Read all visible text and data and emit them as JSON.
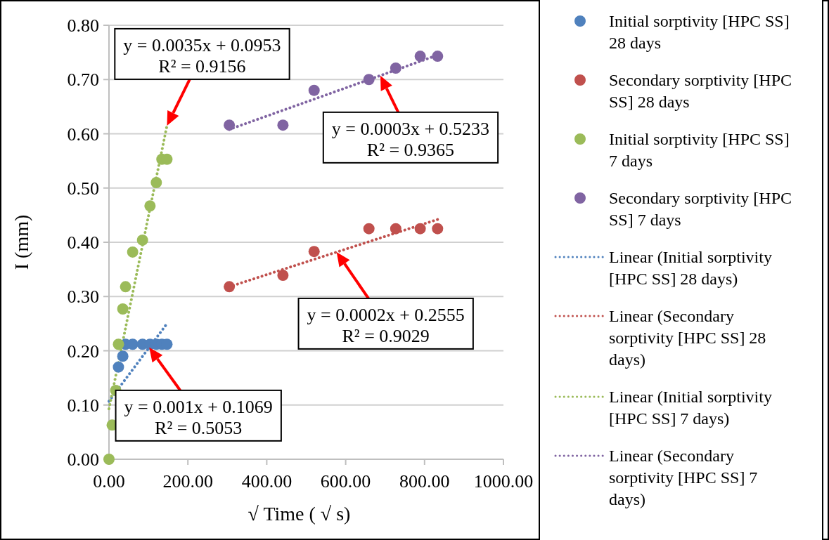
{
  "chart_data": {
    "type": "scatter",
    "xlabel": "√ Time ( √ s)",
    "ylabel": "I (mm)",
    "xlim": [
      0,
      1000
    ],
    "ylim": [
      0,
      0.8
    ],
    "xticks": [
      {
        "value": 0,
        "label": "0.00"
      },
      {
        "value": 200,
        "label": "200.00"
      },
      {
        "value": 400,
        "label": "400.00"
      },
      {
        "value": 600,
        "label": "600.00"
      },
      {
        "value": 800,
        "label": "800.00"
      },
      {
        "value": 1000,
        "label": "1000.00"
      }
    ],
    "yticks": [
      {
        "value": 0,
        "label": "0.00"
      },
      {
        "value": 0.1,
        "label": "0.10"
      },
      {
        "value": 0.2,
        "label": "0.20"
      },
      {
        "value": 0.3,
        "label": "0.30"
      },
      {
        "value": 0.4,
        "label": "0.40"
      },
      {
        "value": 0.5,
        "label": "0.50"
      },
      {
        "value": 0.6,
        "label": "0.60"
      },
      {
        "value": 0.7,
        "label": "0.70"
      },
      {
        "value": 0.8,
        "label": "0.80"
      }
    ],
    "grid": "y",
    "legend": "right",
    "marker": "circle",
    "series": [
      {
        "name": "Initial sorptivity [HPC SS] 28 days",
        "color": "#4f81bd",
        "x": [
          24,
          35,
          42,
          60,
          85,
          104,
          120,
          134,
          147
        ],
        "values": [
          0.17,
          0.19,
          0.212,
          0.212,
          0.212,
          0.212,
          0.212,
          0.212,
          0.212
        ]
      },
      {
        "name": "Secondary sorptivity [HPC SS] 28 days",
        "color": "#c0504d",
        "x": [
          305,
          441,
          520,
          659,
          727,
          789,
          833
        ],
        "values": [
          0.318,
          0.339,
          0.383,
          0.425,
          0.425,
          0.425,
          0.425
        ]
      },
      {
        "name": "Initial sorptivity [HPC SS] 7 days",
        "color": "#9bbb59",
        "x": [
          0,
          8,
          17,
          24,
          35,
          42,
          60,
          85,
          104,
          120,
          134,
          147
        ],
        "values": [
          0,
          0.063,
          0.127,
          0.212,
          0.277,
          0.318,
          0.382,
          0.404,
          0.467,
          0.51,
          0.553,
          0.553
        ]
      },
      {
        "name": "Secondary sorptivity [HPC SS] 7 days",
        "color": "#8064a2",
        "x": [
          305,
          441,
          520,
          659,
          727,
          789,
          833
        ],
        "values": [
          0.616,
          0.616,
          0.68,
          0.7,
          0.721,
          0.743,
          0.743
        ]
      },
      {
        "name": "Linear (Initial sorptivity [HPC SS] 28 days)",
        "type": "line",
        "marker": "none",
        "line_style": "dotted",
        "color": "#4f81bd",
        "x": [
          0,
          147
        ],
        "values": [
          0.107,
          0.25
        ]
      },
      {
        "name": "Linear (Secondary sorptivity [HPC SS] 28 days)",
        "type": "line",
        "marker": "none",
        "line_style": "dotted",
        "color": "#c0504d",
        "x": [
          305,
          833
        ],
        "values": [
          0.318,
          0.442
        ]
      },
      {
        "name": "Linear (Initial sorptivity [HPC SS] 7 days)",
        "type": "line",
        "marker": "none",
        "line_style": "dotted",
        "color": "#9bbb59",
        "x": [
          0,
          147
        ],
        "values": [
          0.093,
          0.615
        ]
      },
      {
        "name": "Linear (Secondary sorptivity [HPC SS] 7 days)",
        "type": "line",
        "marker": "none",
        "line_style": "dotted",
        "color": "#8064a2",
        "x": [
          305,
          833
        ],
        "values": [
          0.608,
          0.745
        ]
      }
    ],
    "annotations": [
      {
        "text": "y = 0.0035x + 0.0953\nR² = 0.9156",
        "x": 147,
        "y": 0.615
      },
      {
        "text": "y = 0.0003x + 0.5233\nR² = 0.9365",
        "x": 688,
        "y": 0.707
      },
      {
        "text": "y = 0.0002x + 0.2555\nR² = 0.9029",
        "x": 577,
        "y": 0.382
      },
      {
        "text": "y = 0.001x + 0.1069\nR² = 0.5053",
        "x": 102,
        "y": 0.206
      }
    ]
  }
}
